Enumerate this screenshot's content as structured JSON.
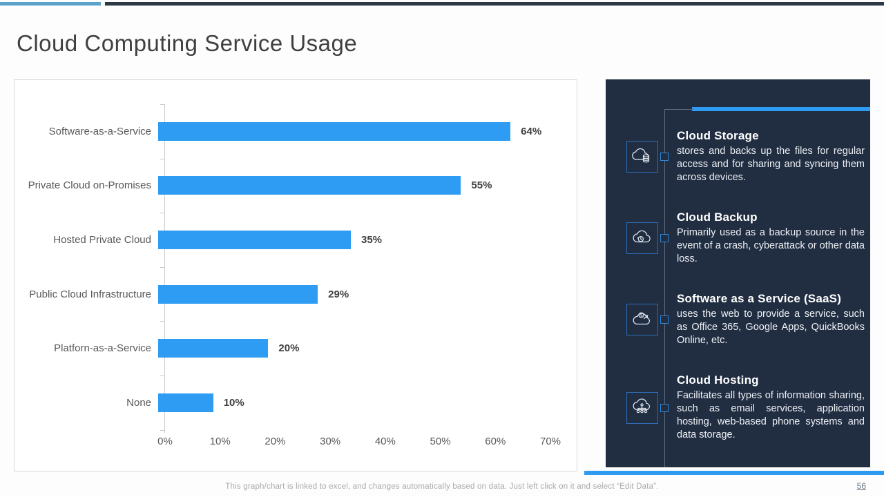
{
  "slide": {
    "title": "Cloud Computing Service Usage",
    "footer_note": "This graph/chart is linked to excel,  and changes automatically based on data. Just left click on it and select “Edit Data”.",
    "page_number": "56"
  },
  "colors": {
    "bar_blue": "#2d9cf2",
    "accent_blue": "#2e9bf0",
    "panel_bg": "#212e42",
    "topbar_blue": "#5ba3c9",
    "topbar_dark": "#2c3844"
  },
  "chart_data": {
    "type": "bar",
    "orientation": "horizontal",
    "title": "",
    "xlabel": "",
    "ylabel": "",
    "categories": [
      "Software-as-a-Service",
      "Private Cloud on-Promises",
      "Hosted Private Cloud",
      "Public Cloud Infrastructure",
      "Platforn-as-a-Service",
      "None"
    ],
    "values": [
      64,
      55,
      35,
      29,
      20,
      10
    ],
    "value_labels": [
      "64%",
      "55%",
      "35%",
      "29%",
      "20%",
      "10%"
    ],
    "x_ticks": [
      "0%",
      "10%",
      "20%",
      "30%",
      "40%",
      "50%",
      "60%",
      "70%"
    ],
    "xlim": [
      0,
      70
    ],
    "grid": false,
    "legend": false,
    "bar_color": "#2d9cf2"
  },
  "panel": {
    "items": [
      {
        "icon": "cloud-storage-icon",
        "title": "Cloud Storage",
        "description": "stores and backs up the files for regular access and for sharing and syncing them across devices."
      },
      {
        "icon": "cloud-backup-icon",
        "title": "Cloud Backup",
        "description": "Primarily used as a backup source in the event of a crash, cyberattack or other data loss."
      },
      {
        "icon": "saas-icon",
        "title": "Software as a Service (SaaS)",
        "description": "uses the web to provide a service, such as Office 365, Google Apps, QuickBooks Online, etc."
      },
      {
        "icon": "cloud-hosting-icon",
        "title": "Cloud Hosting",
        "description": "Facilitates all types of information sharing, such as email services, application hosting, web-based phone systems and data storage."
      }
    ]
  }
}
